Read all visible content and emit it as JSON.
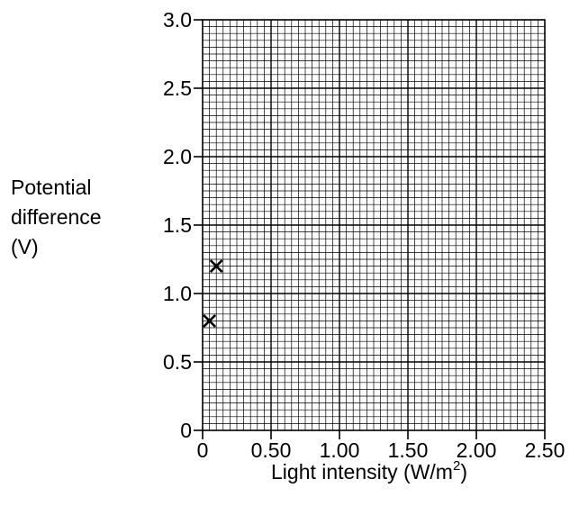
{
  "chart_data": {
    "type": "scatter",
    "xlabel": "Light intensity (W/m²)",
    "xlabel_parts": {
      "main": "Light intensity (W",
      "slash": "/",
      "unit": "m",
      "sup": "2",
      "close": ")"
    },
    "ylabel_lines": [
      "Potential",
      "difference",
      "(V)"
    ],
    "xlim": [
      0,
      2.5
    ],
    "ylim": [
      0,
      3.0
    ],
    "x_ticks": [
      "0",
      "0.50",
      "1.00",
      "1.50",
      "2.00",
      "2.50"
    ],
    "y_ticks": [
      "0",
      "0.5",
      "1.0",
      "1.5",
      "2.0",
      "2.5",
      "3.0"
    ],
    "grid": true,
    "marker": "x",
    "points": [
      {
        "x": 0.05,
        "y": 0.8
      },
      {
        "x": 0.1,
        "y": 1.2
      }
    ]
  }
}
